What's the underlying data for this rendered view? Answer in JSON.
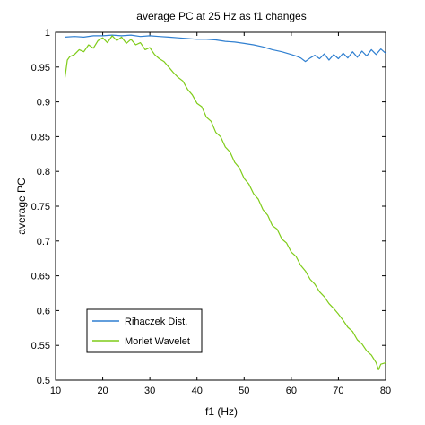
{
  "chart_data": {
    "type": "line",
    "title": "average PC at 25 Hz as f1 changes",
    "xlabel": "f1 (Hz)",
    "ylabel": "average PC",
    "xlim": [
      10,
      80
    ],
    "ylim": [
      0.5,
      1
    ],
    "xticks": [
      10,
      20,
      30,
      40,
      50,
      60,
      70,
      80
    ],
    "yticks": [
      0.5,
      0.55,
      0.6,
      0.65,
      0.7,
      0.75,
      0.8,
      0.85,
      0.9,
      0.95,
      1
    ],
    "xtick_labels": [
      "10",
      "20",
      "30",
      "40",
      "50",
      "60",
      "70",
      "80"
    ],
    "ytick_labels": [
      "0.5",
      "0.55",
      "0.6",
      "0.65",
      "0.7",
      "0.75",
      "0.8",
      "0.85",
      "0.9",
      "0.95",
      "1"
    ],
    "grid": false,
    "legend_position": "bottom-left",
    "series": [
      {
        "name": "Rihaczek Dist.",
        "color": "#2f7fd0",
        "x": [
          12,
          14,
          16,
          18,
          20,
          22,
          24,
          26,
          28,
          30,
          32,
          34,
          36,
          38,
          40,
          42,
          44,
          46,
          48,
          50,
          52,
          54,
          56,
          58,
          60,
          61,
          62,
          63,
          64,
          65,
          66,
          67,
          68,
          69,
          70,
          71,
          72,
          73,
          74,
          75,
          76,
          77,
          78,
          79,
          80
        ],
        "y": [
          0.993,
          0.994,
          0.993,
          0.995,
          0.995,
          0.996,
          0.995,
          0.996,
          0.994,
          0.995,
          0.994,
          0.993,
          0.992,
          0.991,
          0.99,
          0.99,
          0.989,
          0.987,
          0.986,
          0.984,
          0.982,
          0.979,
          0.975,
          0.972,
          0.968,
          0.966,
          0.963,
          0.958,
          0.963,
          0.967,
          0.962,
          0.969,
          0.96,
          0.968,
          0.962,
          0.97,
          0.963,
          0.972,
          0.964,
          0.973,
          0.966,
          0.975,
          0.968,
          0.976,
          0.97
        ]
      },
      {
        "name": "Morlet Wavelet",
        "color": "#7fcc19",
        "x": [
          12,
          12.5,
          13,
          14,
          15,
          16,
          17,
          18,
          19,
          20,
          21,
          22,
          23,
          24,
          25,
          26,
          27,
          28,
          29,
          30,
          31,
          32,
          33,
          34,
          35,
          36,
          37,
          38,
          39,
          40,
          41,
          42,
          43,
          44,
          45,
          46,
          47,
          48,
          49,
          50,
          51,
          52,
          53,
          54,
          55,
          56,
          57,
          58,
          59,
          60,
          61,
          62,
          63,
          64,
          65,
          66,
          67,
          68,
          69,
          70,
          71,
          72,
          73,
          74,
          75,
          76,
          77,
          78,
          78.5,
          79,
          80
        ],
        "y": [
          0.935,
          0.96,
          0.965,
          0.968,
          0.975,
          0.972,
          0.982,
          0.977,
          0.988,
          0.992,
          0.985,
          0.995,
          0.988,
          0.993,
          0.984,
          0.99,
          0.982,
          0.985,
          0.975,
          0.978,
          0.968,
          0.962,
          0.958,
          0.95,
          0.942,
          0.935,
          0.93,
          0.918,
          0.91,
          0.898,
          0.893,
          0.878,
          0.872,
          0.856,
          0.85,
          0.835,
          0.828,
          0.813,
          0.805,
          0.79,
          0.782,
          0.768,
          0.76,
          0.745,
          0.737,
          0.722,
          0.717,
          0.703,
          0.697,
          0.684,
          0.678,
          0.665,
          0.657,
          0.645,
          0.638,
          0.627,
          0.62,
          0.61,
          0.603,
          0.595,
          0.586,
          0.576,
          0.57,
          0.558,
          0.552,
          0.542,
          0.536,
          0.525,
          0.515,
          0.523,
          0.525
        ]
      }
    ]
  }
}
